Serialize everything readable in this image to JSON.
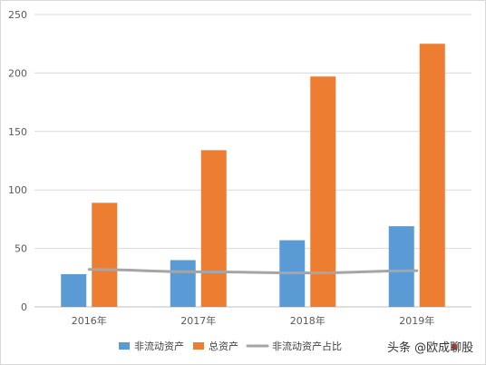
{
  "chart_data": {
    "type": "bar",
    "categories": [
      "2016年",
      "2017年",
      "2018年",
      "2019年"
    ],
    "series": [
      {
        "name": "非流动资产",
        "kind": "bar",
        "color": "#5B9BD5",
        "values": [
          28,
          40,
          57,
          69
        ]
      },
      {
        "name": "总资产",
        "kind": "bar",
        "color": "#ED7D31",
        "values": [
          89,
          134,
          197,
          225
        ]
      },
      {
        "name": "非流动资产占比",
        "kind": "line",
        "color": "#A5A5A5",
        "values": [
          32,
          30,
          29,
          31
        ]
      }
    ],
    "yticks": [
      "0",
      "50",
      "100",
      "150",
      "200",
      "250"
    ],
    "ylim": [
      0,
      250
    ],
    "grid": true,
    "legend_position": "bottom"
  },
  "watermark": "头条 @欧成聊股"
}
